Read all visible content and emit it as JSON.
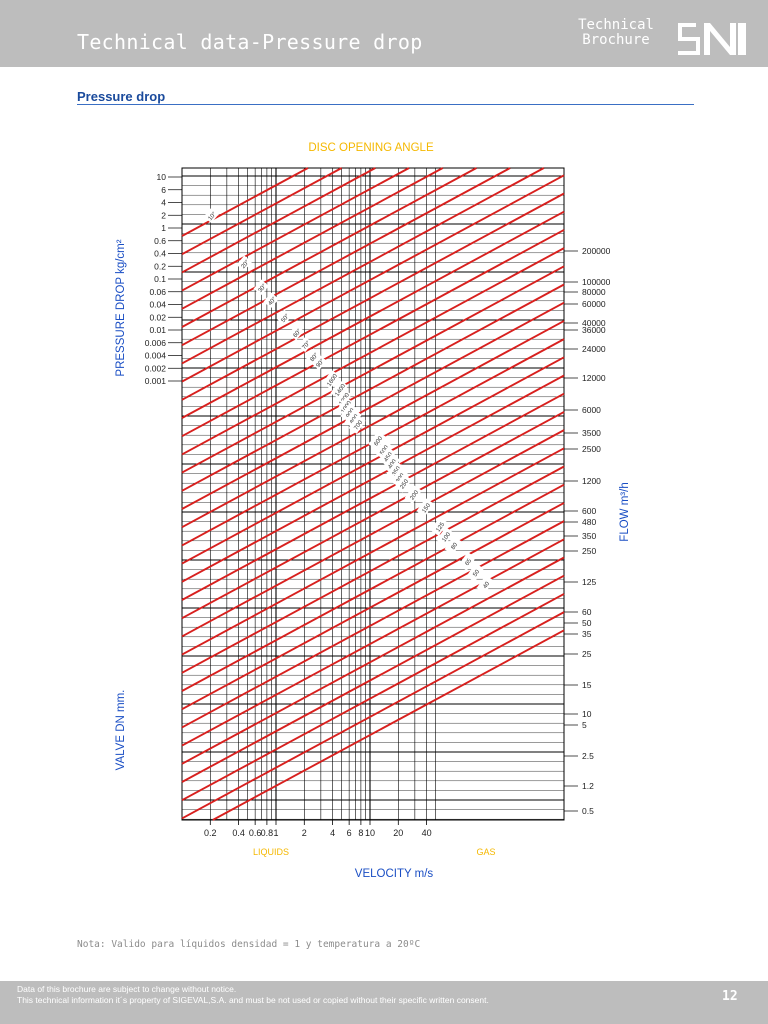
{
  "header": {
    "title": "Technical data-Pressure drop",
    "brand_line1": "Technical",
    "brand_line2": "Brochure"
  },
  "section": {
    "title": "Pressure drop"
  },
  "note": "Nota: Valido para líquidos densidad = 1 y temperatura a 20ºC",
  "footer": {
    "line1": "Data of this brochure are subject to change without notice.",
    "line2": "This technical information it´s property of SIGEVAL,S.A. and must be not used or copied without their specific written consent.",
    "page": "12"
  },
  "colors": {
    "curve": "#d8201e",
    "label_blue": "#1a4ec4",
    "label_yellow": "#f5b800",
    "grid": "#000000"
  },
  "chart_data": {
    "type": "line",
    "title": "DISC OPENING ANGLE",
    "xlabel": "VELOCITY m/s",
    "x_sublabels": [
      "LIQUIDS",
      "GAS"
    ],
    "ylabel_left": "PRESSURE DROP kg/cm²",
    "ylabel_left_lower": "VALVE DN mm.",
    "ylabel_right": "FLOW m³/h",
    "x_scale": "log",
    "x_ticks": [
      "0.2",
      "0.4",
      "0.6",
      "0.8",
      "1",
      "2",
      "4",
      "6",
      "8",
      "10",
      "20",
      "40"
    ],
    "pressure_ticks": [
      "10",
      "6",
      "4",
      "2",
      "1",
      "0.6",
      "0.4",
      "0.2",
      "0.1",
      "0.06",
      "0.04",
      "0.02",
      "0.01",
      "0.006",
      "0.004",
      "0.002",
      "0.001"
    ],
    "flow_ticks": [
      "200000",
      "100000",
      "80000",
      "60000",
      "40000",
      "36000",
      "24000",
      "12000",
      "6000",
      "3500",
      "2500",
      "1200",
      "600",
      "480",
      "350",
      "250",
      "125",
      "60",
      "50",
      "35",
      "25",
      "15",
      "10",
      "5",
      "2.5",
      "1.2",
      "0.5"
    ],
    "angle_labels": [
      "10°",
      "20°",
      "30°",
      "40°",
      "50°",
      "60°",
      "70°",
      "80°",
      "90°"
    ],
    "dn_labels": [
      "1600",
      "1400",
      "1200",
      "1000",
      "900",
      "800",
      "700",
      "600",
      "500",
      "450",
      "400",
      "350",
      "300",
      "250",
      "200",
      "150",
      "125",
      "100",
      "80",
      "65",
      "50",
      "40"
    ],
    "series": [
      {
        "type": "diagonal_family",
        "count": 34,
        "slope": "parallel",
        "color": "#d8201e"
      }
    ],
    "grid": true
  }
}
